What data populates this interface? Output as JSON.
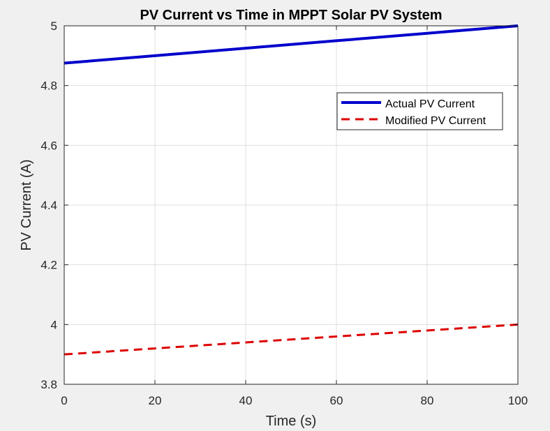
{
  "chart_data": {
    "type": "line",
    "title": "PV Current vs Time in MPPT Solar PV System",
    "xlabel": "Time (s)",
    "ylabel": "PV Current (A)",
    "xlim": [
      0,
      100
    ],
    "ylim": [
      3.8,
      5
    ],
    "x_ticks": [
      0,
      20,
      40,
      60,
      80,
      100
    ],
    "y_ticks": [
      3.8,
      4,
      4.2,
      4.4,
      4.6,
      4.8,
      5
    ],
    "x_tick_labels": [
      "0",
      "20",
      "40",
      "60",
      "80",
      "100"
    ],
    "y_tick_labels": [
      "3.8",
      "4",
      "4.2",
      "4.4",
      "4.6",
      "4.8",
      "5"
    ],
    "grid": true,
    "legend_position": "top-right",
    "series": [
      {
        "name": "Actual PV Current",
        "color": "#0000cc",
        "style": "solid",
        "x": [
          0,
          20,
          40,
          60,
          80,
          100
        ],
        "y": [
          4.875,
          4.9,
          4.925,
          4.95,
          4.975,
          5.0
        ]
      },
      {
        "name": "Modified PV Current",
        "color": "#dd0000",
        "style": "dashed",
        "x": [
          0,
          20,
          40,
          60,
          80,
          100
        ],
        "y": [
          3.9,
          3.92,
          3.94,
          3.96,
          3.98,
          4.0
        ]
      }
    ]
  }
}
